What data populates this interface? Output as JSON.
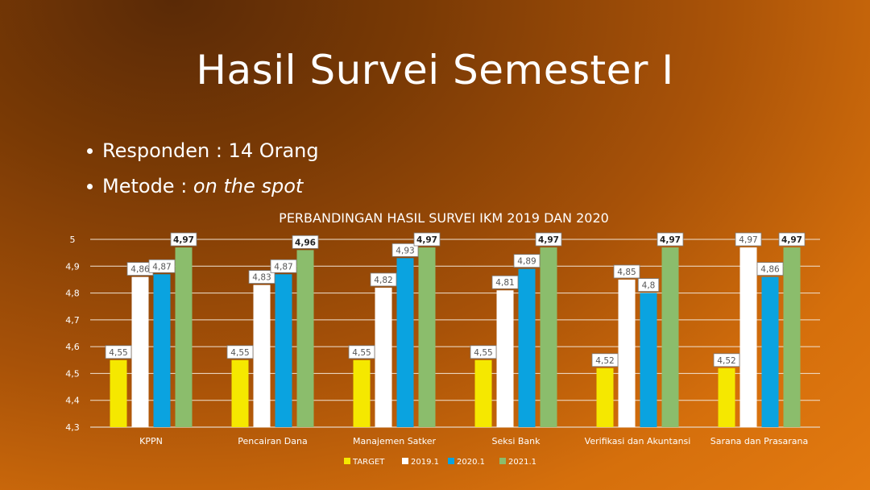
{
  "slide": {
    "title": "Hasil Survei Semester I",
    "bullets": [
      {
        "text": "Responden : 14 Orang",
        "italic": ""
      },
      {
        "text": "Metode : ",
        "italic": "on the spot"
      }
    ]
  },
  "chart_data": {
    "type": "bar",
    "title": "PERBANDINGAN HASIL SURVEI IKM 2019 DAN 2020",
    "categories": [
      "KPPN",
      "Pencairan Dana",
      "Manajemen Satker",
      "Seksi Bank",
      "Verifikasi dan Akuntansi",
      "Sarana dan Prasarana"
    ],
    "series": [
      {
        "name": "TARGET",
        "color": "#f5e800",
        "values": [
          4.55,
          4.55,
          4.55,
          4.55,
          4.52,
          4.52
        ],
        "labels": [
          "4,55",
          "4,55",
          "4,55",
          "4,55",
          "4,52",
          "4,52"
        ]
      },
      {
        "name": "2019.1",
        "color": "#ffffff",
        "values": [
          4.86,
          4.83,
          4.82,
          4.81,
          4.85,
          4.97
        ],
        "labels": [
          "4,86",
          "4,83",
          "4,82",
          "4,81",
          "4,85",
          "4,97"
        ]
      },
      {
        "name": "2020.1",
        "color": "#0aa3e0",
        "values": [
          4.87,
          4.87,
          4.93,
          4.89,
          4.8,
          4.86
        ],
        "labels": [
          "4,87",
          "4,87",
          "4,93",
          "4,89",
          "4,8",
          "4,86"
        ]
      },
      {
        "name": "2021.1",
        "color": "#8bbd6c",
        "values": [
          4.97,
          4.96,
          4.97,
          4.97,
          4.97,
          4.97
        ],
        "labels": [
          "4,97",
          "4,96",
          "4,97",
          "4,97",
          "4,97",
          "4,97"
        ]
      }
    ],
    "ylim": [
      4.3,
      5
    ],
    "yticks": [
      4.3,
      4.4,
      4.5,
      4.6,
      4.7,
      4.8,
      4.9,
      5
    ],
    "ytick_labels": [
      "4,3",
      "4,4",
      "4,5",
      "4,6",
      "4,7",
      "4,8",
      "4,9",
      "5"
    ],
    "grid": true,
    "legend_position": "bottom"
  }
}
